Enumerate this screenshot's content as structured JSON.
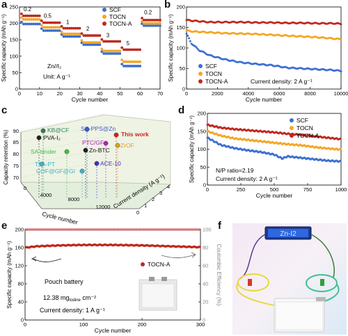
{
  "figure": {
    "panel_labels": [
      "a",
      "b",
      "c",
      "d",
      "e",
      "f"
    ]
  },
  "colors": {
    "SCF": "#3c6fd2",
    "TOCN": "#f5a623",
    "TOCN-A": "#c0281f",
    "bg3d": "#eef3e4"
  },
  "chart_data": [
    {
      "id": "a",
      "type": "scatter",
      "xlabel": "Cycle number",
      "ylabel": "Specific capacity (mAh g⁻¹)",
      "xlim": [
        0,
        70
      ],
      "ylim": [
        0,
        250
      ],
      "xticks": [
        0,
        10,
        20,
        30,
        40,
        50,
        60,
        70
      ],
      "yticks": [
        0,
        50,
        100,
        150,
        200,
        250
      ],
      "annotations": [
        "Zn//I₂",
        "Unit: A g⁻¹"
      ],
      "rate_labels": [
        "0.2",
        "0.5",
        "1",
        "2",
        "3",
        "5",
        "0.2"
      ],
      "series": [
        {
          "name": "SCF",
          "segments": [
            [
              1,
              10,
              198
            ],
            [
              11,
              20,
              178
            ],
            [
              21,
              30,
              160
            ],
            [
              31,
              40,
              135
            ],
            [
              41,
              50,
              108
            ],
            [
              51,
              60,
              70
            ],
            [
              61,
              70,
              193
            ]
          ]
        },
        {
          "name": "TOCN",
          "segments": [
            [
              1,
              10,
              212
            ],
            [
              11,
              20,
              188
            ],
            [
              21,
              30,
              168
            ],
            [
              31,
              40,
              142
            ],
            [
              41,
              50,
              116
            ],
            [
              51,
              60,
              83
            ],
            [
              61,
              70,
              200
            ]
          ]
        },
        {
          "name": "TOCN-A",
          "segments": [
            [
              1,
              10,
              223
            ],
            [
              11,
              20,
              202
            ],
            [
              21,
              30,
              185
            ],
            [
              31,
              40,
              163
            ],
            [
              41,
              50,
              145
            ],
            [
              51,
              60,
              120
            ],
            [
              61,
              70,
              210
            ]
          ]
        }
      ]
    },
    {
      "id": "b",
      "type": "scatter",
      "xlabel": "Cycle number",
      "ylabel": "Specific capacity (mAh g⁻¹)",
      "xlim": [
        0,
        10000
      ],
      "ylim": [
        0,
        200
      ],
      "xticks": [
        0,
        2000,
        4000,
        6000,
        8000,
        10000
      ],
      "yticks": [
        0,
        50,
        100,
        150,
        200
      ],
      "annotation": "Current density: 2 A g⁻¹",
      "series": [
        {
          "name": "SCF",
          "points": [
            [
              0,
              135
            ],
            [
              300,
              112
            ],
            [
              800,
              95
            ],
            [
              1500,
              82
            ],
            [
              2500,
              72
            ],
            [
              3500,
              65
            ],
            [
              4500,
              61
            ],
            [
              5500,
              58
            ],
            [
              6000,
              55
            ],
            [
              6500,
              52
            ],
            [
              7500,
              50
            ],
            [
              8500,
              48
            ],
            [
              9500,
              46
            ],
            [
              10000,
              44
            ]
          ]
        },
        {
          "name": "TOCN",
          "points": [
            [
              0,
              142
            ],
            [
              500,
              140
            ],
            [
              1500,
              138
            ],
            [
              2500,
              136
            ],
            [
              3500,
              135
            ],
            [
              4500,
              134
            ],
            [
              5500,
              132
            ],
            [
              6500,
              130
            ],
            [
              7500,
              128
            ],
            [
              8500,
              126
            ],
            [
              9500,
              123
            ],
            [
              10000,
              121
            ]
          ]
        },
        {
          "name": "TOCN-A",
          "points": [
            [
              0,
              168
            ],
            [
              500,
              166
            ],
            [
              1500,
              163
            ],
            [
              2500,
              163
            ],
            [
              3500,
              163
            ],
            [
              4500,
              162
            ],
            [
              5500,
              162
            ],
            [
              6500,
              161
            ],
            [
              7500,
              161
            ],
            [
              8500,
              160
            ],
            [
              9500,
              160
            ],
            [
              10000,
              159
            ]
          ]
        }
      ]
    },
    {
      "id": "c",
      "type": "scatter",
      "xlabel": "Cycle number",
      "ylabel": "Capacity retention (%)",
      "zlabel": "Current density (A g⁻¹)",
      "yticks": [
        70,
        75,
        80,
        85,
        90
      ],
      "xticks": [
        0,
        4000,
        8000,
        12000
      ],
      "zticks": [
        0,
        1,
        2,
        3,
        4
      ],
      "points": [
        {
          "label": "KB@CF",
          "color": "#2e7d5b"
        },
        {
          "label": "PVA-I₂",
          "color": "#222222"
        },
        {
          "label": "SC-PPS@Zn",
          "color": "#3b5bc4"
        },
        {
          "label": "This work",
          "color": "#d0201c"
        },
        {
          "label": "PTC/GF",
          "color": "#b020c0"
        },
        {
          "label": "ZrOF",
          "color": "#e0a020"
        },
        {
          "label": "Zn-BTC",
          "color": "#1e1e1e"
        },
        {
          "label": "SA binder",
          "color": "#40c040"
        },
        {
          "label": "TTA-PT",
          "color": "#3cb4c8"
        },
        {
          "label": "ACE-10",
          "color": "#4030c0"
        },
        {
          "label": "COF@GF@GI",
          "color": "#3cb4c8"
        }
      ]
    },
    {
      "id": "d",
      "type": "scatter",
      "xlabel": "Cycle number",
      "ylabel": "Specific capacity (mAh g⁻¹)",
      "xlim": [
        0,
        1000
      ],
      "ylim": [
        0,
        200
      ],
      "xticks": [
        0,
        250,
        500,
        750,
        1000
      ],
      "yticks": [
        0,
        50,
        100,
        150,
        200
      ],
      "annotations": [
        "N/P ratio=2.19",
        "Current density: 2 A g⁻¹"
      ],
      "series": [
        {
          "name": "SCF",
          "points": [
            [
              0,
              132
            ],
            [
              100,
              112
            ],
            [
              200,
              103
            ],
            [
              300,
              97
            ],
            [
              400,
              92
            ],
            [
              500,
              85
            ],
            [
              560,
              74
            ],
            [
              600,
              80
            ],
            [
              700,
              76
            ],
            [
              800,
              72
            ],
            [
              900,
              68
            ],
            [
              1000,
              66
            ]
          ]
        },
        {
          "name": "TOCN",
          "points": [
            [
              0,
              150
            ],
            [
              100,
              138
            ],
            [
              200,
              130
            ],
            [
              300,
              126
            ],
            [
              400,
              122
            ],
            [
              500,
              118
            ],
            [
              600,
              114
            ],
            [
              700,
              111
            ],
            [
              800,
              106
            ],
            [
              900,
              102
            ],
            [
              1000,
              99
            ]
          ]
        },
        {
          "name": "TOCN-A",
          "points": [
            [
              0,
              168
            ],
            [
              100,
              160
            ],
            [
              200,
              156
            ],
            [
              300,
              153
            ],
            [
              400,
              150
            ],
            [
              500,
              147
            ],
            [
              600,
              143
            ],
            [
              700,
              140
            ],
            [
              800,
              136
            ],
            [
              900,
              132
            ],
            [
              1000,
              128
            ]
          ]
        }
      ]
    },
    {
      "id": "e",
      "type": "scatter",
      "xlabel": "Cycle number",
      "ylabel": "Specific capacity (mAh g⁻¹)",
      "y2label": "Coulombic Efficiency (%)",
      "xlim": [
        0,
        300
      ],
      "ylim": [
        0,
        200
      ],
      "y2lim": [
        0,
        100
      ],
      "xticks": [
        0,
        100,
        200,
        300
      ],
      "yticks": [
        0,
        40,
        80,
        120,
        160,
        200
      ],
      "y2ticks": [
        0,
        20,
        40,
        60,
        80,
        100
      ],
      "annotations": [
        "Pouch battery",
        "12.38 mg",
        "Iodine",
        " cm⁻²",
        "Current density: 1 A g⁻¹"
      ],
      "series": [
        {
          "name": "TOCN-A",
          "points": [
            [
              0,
              160
            ],
            [
              20,
              163
            ],
            [
              60,
              165
            ],
            [
              100,
              166
            ],
            [
              150,
              166
            ],
            [
              200,
              165
            ],
            [
              250,
              163
            ],
            [
              300,
              161
            ]
          ]
        },
        {
          "name": "CE",
          "axis": "y2",
          "value": 100
        }
      ]
    }
  ],
  "photo_f": {
    "display": "Zn-I2"
  }
}
